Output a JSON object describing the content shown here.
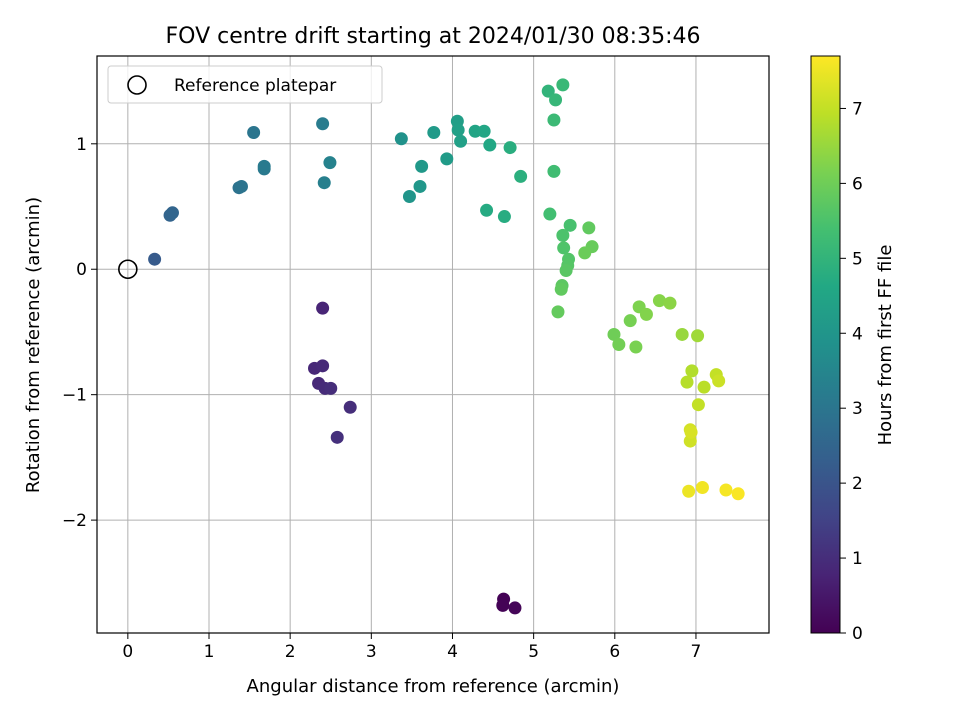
{
  "chart_data": {
    "type": "scatter",
    "title": "FOV centre drift starting at 2024/01/30 08:35:46",
    "xlabel": "Angular distance from reference (arcmin)",
    "ylabel": "Rotation from reference (arcmin)",
    "xlim": [
      -0.38,
      7.9
    ],
    "ylim": [
      -2.9,
      1.7
    ],
    "xticks": [
      0,
      1,
      2,
      3,
      4,
      5,
      6,
      7
    ],
    "yticks": [
      -2,
      -1,
      0,
      1
    ],
    "xtick_labels": [
      "0",
      "1",
      "2",
      "3",
      "4",
      "5",
      "6",
      "7"
    ],
    "ytick_labels": [
      "−2",
      "−1",
      "0",
      "1"
    ],
    "grid": true,
    "legend": {
      "position": "top-left",
      "entries": [
        "Reference platepar"
      ]
    },
    "reference_point": {
      "x": 0,
      "y": 0
    },
    "colorbar": {
      "label": "Hours from first FF file",
      "colormap": "viridis",
      "range": [
        0,
        7.7
      ],
      "ticks": [
        0,
        1,
        2,
        3,
        4,
        5,
        6,
        7
      ],
      "tick_labels": [
        "0",
        "1",
        "2",
        "3",
        "4",
        "5",
        "6",
        "7"
      ]
    },
    "points": [
      {
        "x": 4.63,
        "y": -2.63,
        "h": 0.02
      },
      {
        "x": 4.62,
        "y": -2.68,
        "h": 0.05
      },
      {
        "x": 4.77,
        "y": -2.7,
        "h": 0.1
      },
      {
        "x": 2.4,
        "y": -0.31,
        "h": 0.8
      },
      {
        "x": 2.3,
        "y": -0.79,
        "h": 0.85
      },
      {
        "x": 2.4,
        "y": -0.77,
        "h": 0.88
      },
      {
        "x": 2.35,
        "y": -0.91,
        "h": 0.9
      },
      {
        "x": 2.43,
        "y": -0.95,
        "h": 0.95
      },
      {
        "x": 2.5,
        "y": -0.95,
        "h": 1.0
      },
      {
        "x": 2.74,
        "y": -1.1,
        "h": 1.0
      },
      {
        "x": 2.58,
        "y": -1.34,
        "h": 1.05
      },
      {
        "x": 0.33,
        "y": 0.08,
        "h": 2.2
      },
      {
        "x": 0.52,
        "y": 0.43,
        "h": 2.45
      },
      {
        "x": 0.55,
        "y": 0.45,
        "h": 2.5
      },
      {
        "x": 1.37,
        "y": 0.65,
        "h": 2.9
      },
      {
        "x": 1.4,
        "y": 0.66,
        "h": 2.95
      },
      {
        "x": 1.55,
        "y": 1.09,
        "h": 3.0
      },
      {
        "x": 1.68,
        "y": 0.8,
        "h": 3.1
      },
      {
        "x": 1.68,
        "y": 0.82,
        "h": 3.15
      },
      {
        "x": 2.4,
        "y": 1.16,
        "h": 3.2
      },
      {
        "x": 2.42,
        "y": 0.69,
        "h": 3.3
      },
      {
        "x": 2.49,
        "y": 0.85,
        "h": 3.4
      },
      {
        "x": 3.37,
        "y": 1.04,
        "h": 3.9
      },
      {
        "x": 3.47,
        "y": 0.58,
        "h": 4.0
      },
      {
        "x": 3.6,
        "y": 0.66,
        "h": 4.05
      },
      {
        "x": 3.62,
        "y": 0.82,
        "h": 4.1
      },
      {
        "x": 3.77,
        "y": 1.09,
        "h": 4.15
      },
      {
        "x": 3.93,
        "y": 0.88,
        "h": 4.2
      },
      {
        "x": 4.06,
        "y": 1.18,
        "h": 4.3
      },
      {
        "x": 4.07,
        "y": 1.11,
        "h": 4.35
      },
      {
        "x": 4.1,
        "y": 1.02,
        "h": 4.35
      },
      {
        "x": 4.28,
        "y": 1.1,
        "h": 4.5
      },
      {
        "x": 4.39,
        "y": 1.1,
        "h": 4.55
      },
      {
        "x": 4.46,
        "y": 0.99,
        "h": 4.6
      },
      {
        "x": 4.42,
        "y": 0.47,
        "h": 4.7
      },
      {
        "x": 4.64,
        "y": 0.42,
        "h": 4.75
      },
      {
        "x": 4.71,
        "y": 0.97,
        "h": 4.8
      },
      {
        "x": 4.84,
        "y": 0.74,
        "h": 4.85
      },
      {
        "x": 5.18,
        "y": 1.42,
        "h": 5.0
      },
      {
        "x": 5.27,
        "y": 1.35,
        "h": 5.1
      },
      {
        "x": 5.36,
        "y": 1.47,
        "h": 5.15
      },
      {
        "x": 5.25,
        "y": 1.19,
        "h": 5.2
      },
      {
        "x": 5.25,
        "y": 0.78,
        "h": 5.3
      },
      {
        "x": 5.2,
        "y": 0.44,
        "h": 5.35
      },
      {
        "x": 5.45,
        "y": 0.35,
        "h": 5.45
      },
      {
        "x": 5.36,
        "y": 0.27,
        "h": 5.5
      },
      {
        "x": 5.37,
        "y": 0.17,
        "h": 5.55
      },
      {
        "x": 5.43,
        "y": 0.08,
        "h": 5.6
      },
      {
        "x": 5.42,
        "y": 0.03,
        "h": 5.65
      },
      {
        "x": 5.4,
        "y": -0.01,
        "h": 5.7
      },
      {
        "x": 5.35,
        "y": -0.13,
        "h": 5.75
      },
      {
        "x": 5.34,
        "y": -0.16,
        "h": 5.8
      },
      {
        "x": 5.3,
        "y": -0.34,
        "h": 5.85
      },
      {
        "x": 5.68,
        "y": 0.33,
        "h": 5.8
      },
      {
        "x": 5.72,
        "y": 0.18,
        "h": 5.9
      },
      {
        "x": 5.63,
        "y": 0.13,
        "h": 5.95
      },
      {
        "x": 5.99,
        "y": -0.52,
        "h": 6.0
      },
      {
        "x": 6.05,
        "y": -0.6,
        "h": 6.05
      },
      {
        "x": 6.19,
        "y": -0.41,
        "h": 6.1
      },
      {
        "x": 6.26,
        "y": -0.62,
        "h": 6.15
      },
      {
        "x": 6.3,
        "y": -0.3,
        "h": 6.2
      },
      {
        "x": 6.39,
        "y": -0.36,
        "h": 6.25
      },
      {
        "x": 6.55,
        "y": -0.25,
        "h": 6.3
      },
      {
        "x": 6.68,
        "y": -0.27,
        "h": 6.35
      },
      {
        "x": 6.83,
        "y": -0.52,
        "h": 6.5
      },
      {
        "x": 7.02,
        "y": -0.53,
        "h": 6.6
      },
      {
        "x": 6.95,
        "y": -0.81,
        "h": 6.8
      },
      {
        "x": 6.89,
        "y": -0.9,
        "h": 6.85
      },
      {
        "x": 7.1,
        "y": -0.94,
        "h": 6.9
      },
      {
        "x": 7.25,
        "y": -0.84,
        "h": 7.0
      },
      {
        "x": 7.28,
        "y": -0.89,
        "h": 7.1
      },
      {
        "x": 7.03,
        "y": -1.08,
        "h": 7.0
      },
      {
        "x": 6.93,
        "y": -1.28,
        "h": 7.2
      },
      {
        "x": 6.94,
        "y": -1.3,
        "h": 7.25
      },
      {
        "x": 6.93,
        "y": -1.37,
        "h": 7.15
      },
      {
        "x": 6.91,
        "y": -1.77,
        "h": 7.5
      },
      {
        "x": 7.08,
        "y": -1.74,
        "h": 7.55
      },
      {
        "x": 7.37,
        "y": -1.76,
        "h": 7.6
      },
      {
        "x": 7.52,
        "y": -1.79,
        "h": 7.65
      }
    ]
  }
}
